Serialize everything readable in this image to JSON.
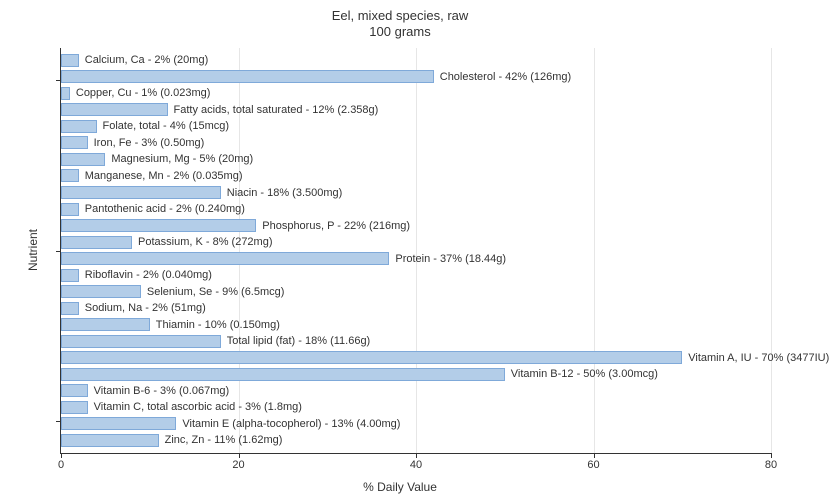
{
  "title": "Eel, mixed species, raw",
  "subtitle": "100 grams",
  "y_axis_label": "Nutrient",
  "x_axis_label": "% Daily Value",
  "chart": {
    "type": "bar-horizontal",
    "bar_fill": "#b3cde8",
    "bar_border": "#7fa9d9",
    "background_color": "#ffffff",
    "grid_color": "#e6e6e6",
    "axis_color": "#333333",
    "label_fontsize": 11,
    "title_fontsize": 13,
    "xlim": [
      0,
      80
    ],
    "xticks": [
      0,
      20,
      40,
      60,
      80
    ],
    "nutrients": [
      {
        "name": "Calcium, Ca",
        "pct": 2,
        "amount": "20mg"
      },
      {
        "name": "Cholesterol",
        "pct": 42,
        "amount": "126mg"
      },
      {
        "name": "Copper, Cu",
        "pct": 1,
        "amount": "0.023mg"
      },
      {
        "name": "Fatty acids, total saturated",
        "pct": 12,
        "amount": "2.358g"
      },
      {
        "name": "Folate, total",
        "pct": 4,
        "amount": "15mcg"
      },
      {
        "name": "Iron, Fe",
        "pct": 3,
        "amount": "0.50mg"
      },
      {
        "name": "Magnesium, Mg",
        "pct": 5,
        "amount": "20mg"
      },
      {
        "name": "Manganese, Mn",
        "pct": 2,
        "amount": "0.035mg"
      },
      {
        "name": "Niacin",
        "pct": 18,
        "amount": "3.500mg"
      },
      {
        "name": "Pantothenic acid",
        "pct": 2,
        "amount": "0.240mg"
      },
      {
        "name": "Phosphorus, P",
        "pct": 22,
        "amount": "216mg"
      },
      {
        "name": "Potassium, K",
        "pct": 8,
        "amount": "272mg"
      },
      {
        "name": "Protein",
        "pct": 37,
        "amount": "18.44g"
      },
      {
        "name": "Riboflavin",
        "pct": 2,
        "amount": "0.040mg"
      },
      {
        "name": "Selenium, Se",
        "pct": 9,
        "amount": "6.5mcg"
      },
      {
        "name": "Sodium, Na",
        "pct": 2,
        "amount": "51mg"
      },
      {
        "name": "Thiamin",
        "pct": 10,
        "amount": "0.150mg"
      },
      {
        "name": "Total lipid (fat)",
        "pct": 18,
        "amount": "11.66g"
      },
      {
        "name": "Vitamin A, IU",
        "pct": 70,
        "amount": "3477IU"
      },
      {
        "name": "Vitamin B-12",
        "pct": 50,
        "amount": "3.00mcg"
      },
      {
        "name": "Vitamin B-6",
        "pct": 3,
        "amount": "0.067mg"
      },
      {
        "name": "Vitamin C, total ascorbic acid",
        "pct": 3,
        "amount": "1.8mg"
      },
      {
        "name": "Vitamin E (alpha-tocopherol)",
        "pct": 13,
        "amount": "4.00mg"
      },
      {
        "name": "Zinc, Zn",
        "pct": 11,
        "amount": "1.62mg"
      }
    ]
  }
}
